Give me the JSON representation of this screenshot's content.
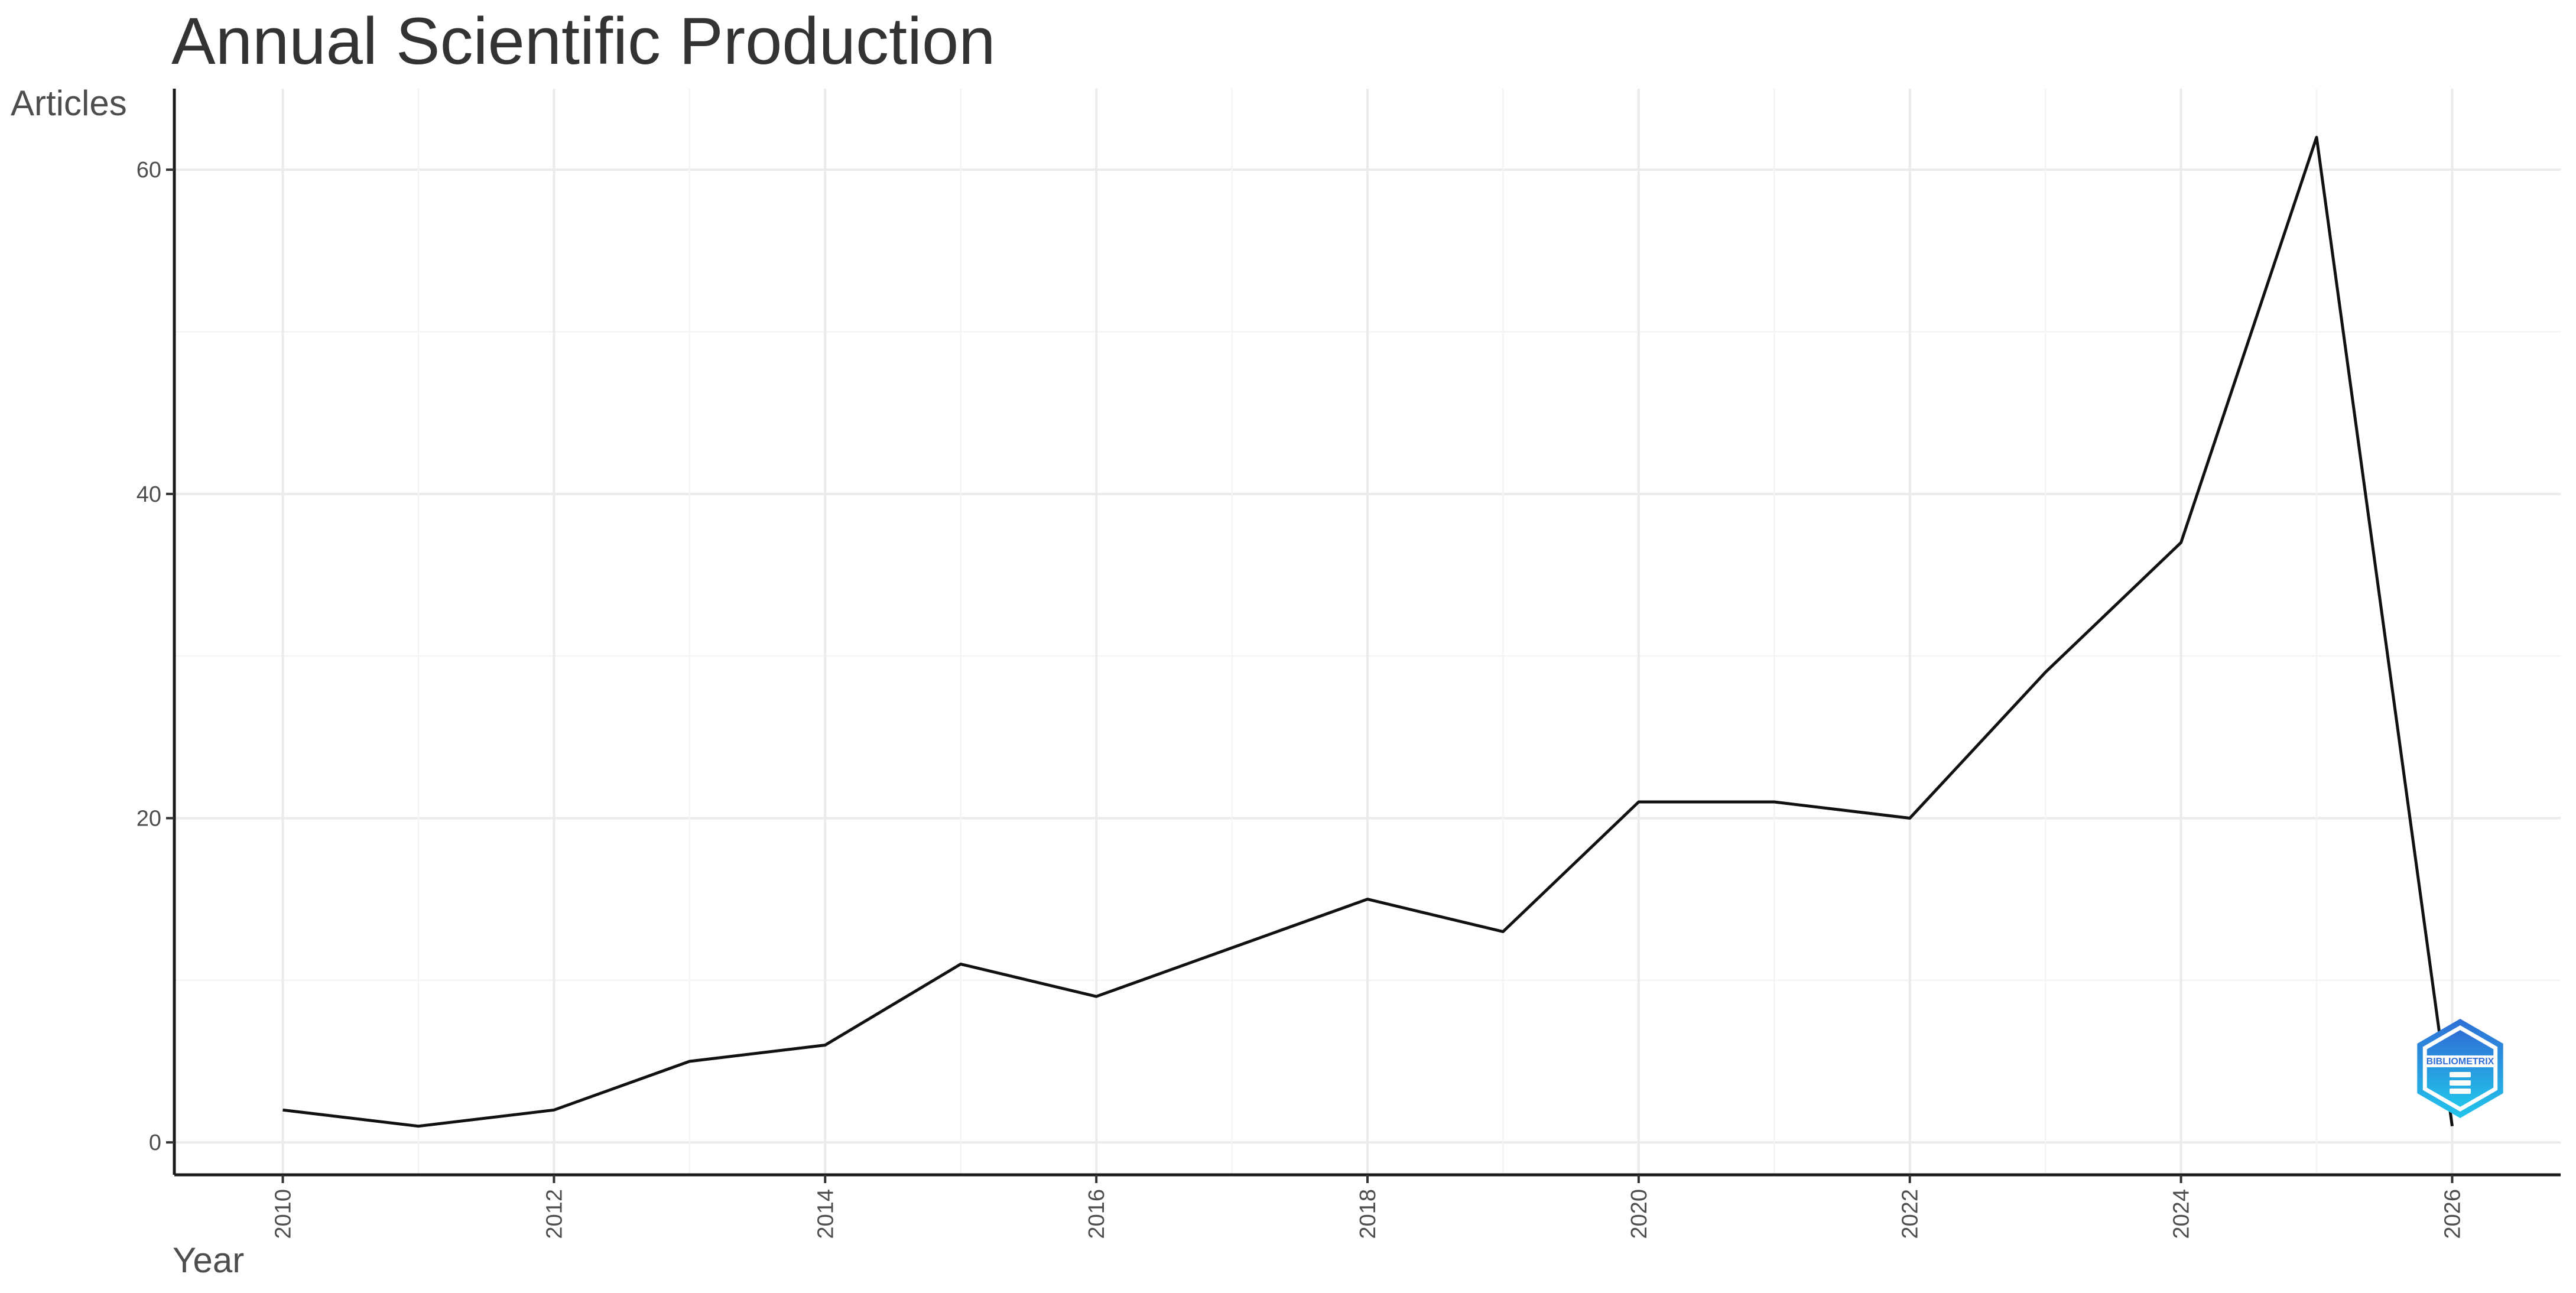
{
  "chart_data": {
    "type": "line",
    "title": "Annual Scientific Production",
    "xlabel": "Year",
    "ylabel": "Articles",
    "x": [
      2010,
      2011,
      2012,
      2013,
      2014,
      2015,
      2016,
      2017,
      2018,
      2019,
      2020,
      2021,
      2022,
      2023,
      2024,
      2025,
      2026
    ],
    "series": [
      {
        "values": [
          2,
          1,
          2,
          5,
          6,
          11,
          9,
          12,
          15,
          13,
          21,
          21,
          20,
          29,
          37,
          62,
          1
        ]
      }
    ],
    "xlim": [
      2009.2,
      2026.8
    ],
    "ylim": [
      -2,
      65
    ],
    "x_ticks": [
      2010,
      2012,
      2014,
      2016,
      2018,
      2020,
      2022,
      2024,
      2026
    ],
    "y_ticks": [
      0,
      20,
      40,
      60
    ],
    "grid": true,
    "legend": "none",
    "line_color": "#111111"
  },
  "watermark": {
    "text": "BIBLIOMETRIX",
    "icon": "bibliometrix-logo",
    "colors": [
      "#2f6fd6",
      "#22c4ea"
    ]
  }
}
